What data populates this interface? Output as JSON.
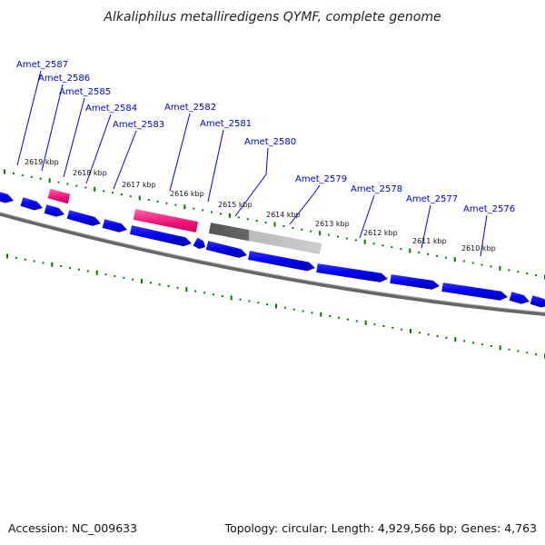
{
  "title": "Alkaliphilus metalliredigens QYMF, complete genome",
  "footer": {
    "accession": "Accession: NC_009633",
    "summary": "Topology: circular; Length: 4,929,566 bp; Genes: 4,763"
  },
  "colors": {
    "gene_blue": "#0000ee",
    "rna_pink": "#ee1177",
    "pseudo_gray": "#777777",
    "tick_green": "#007700",
    "backbone_gray": "#777777",
    "label_blue": "#0000cc"
  },
  "scale_labels": [
    "2619 kbp",
    "2618 kbp",
    "2617 kbp",
    "2616 kbp",
    "2615 kbp",
    "2614 kbp",
    "2613 kbp",
    "2612 kbp",
    "2611 kbp",
    "2610 kbp"
  ],
  "gene_labels": [
    "Amet_2587",
    "Amet_2586",
    "Amet_2585",
    "Amet_2584",
    "Amet_2583",
    "Amet_2582",
    "Amet_2581",
    "Amet_2580",
    "Amet_2579",
    "Amet_2578",
    "Amet_2577",
    "Amet_2576"
  ]
}
